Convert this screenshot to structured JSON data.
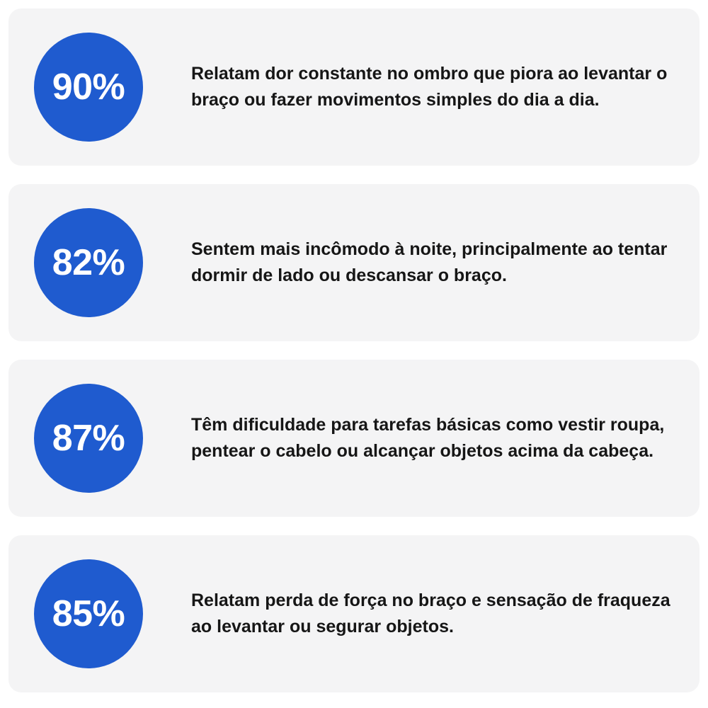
{
  "colors": {
    "badge": "#1f5bcf",
    "card_background": "#f4f4f5",
    "text": "#161616"
  },
  "stats": [
    {
      "percent": "90%",
      "text": "Relatam dor constante no ombro que piora ao levantar o braço ou fazer movimentos simples do dia a dia."
    },
    {
      "percent": "82%",
      "text": "Sentem mais incômodo à noite, principalmente ao tentar dormir de lado ou descansar o braço."
    },
    {
      "percent": "87%",
      "text": "Têm dificuldade para tarefas básicas como vestir roupa, pentear o cabelo ou alcançar objetos acima da cabeça."
    },
    {
      "percent": "85%",
      "text": "Relatam perda de força no braço e sensação de fraqueza ao levantar ou segurar objetos."
    }
  ]
}
